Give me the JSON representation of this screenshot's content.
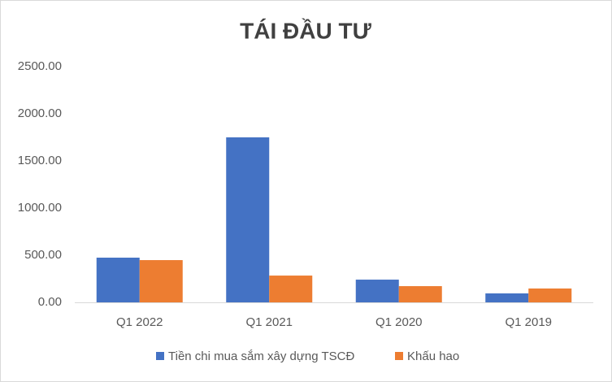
{
  "chart_data": {
    "type": "bar",
    "title": "TÁI ĐẦU TƯ",
    "categories": [
      "Q1 2022",
      "Q1 2021",
      "Q1 2020",
      "Q1 2019"
    ],
    "series": [
      {
        "name": "Tiền chi mua sắm xây dựng TSCĐ",
        "color": "#4472c4",
        "values": [
          474,
          1750,
          241,
          95
        ]
      },
      {
        "name": "Khấu hao",
        "color": "#ed7d31",
        "values": [
          448,
          284,
          172,
          147
        ]
      }
    ],
    "ylim": [
      0,
      2500
    ],
    "yticks": [
      {
        "value": 0,
        "label": "0.00"
      },
      {
        "value": 500,
        "label": "500.00"
      },
      {
        "value": 1000,
        "label": "1000.00"
      },
      {
        "value": 1500,
        "label": "1500.00"
      },
      {
        "value": 2000,
        "label": "2000.00"
      },
      {
        "value": 2500,
        "label": "2500.00"
      }
    ],
    "grid": false,
    "legend": "bottom"
  }
}
